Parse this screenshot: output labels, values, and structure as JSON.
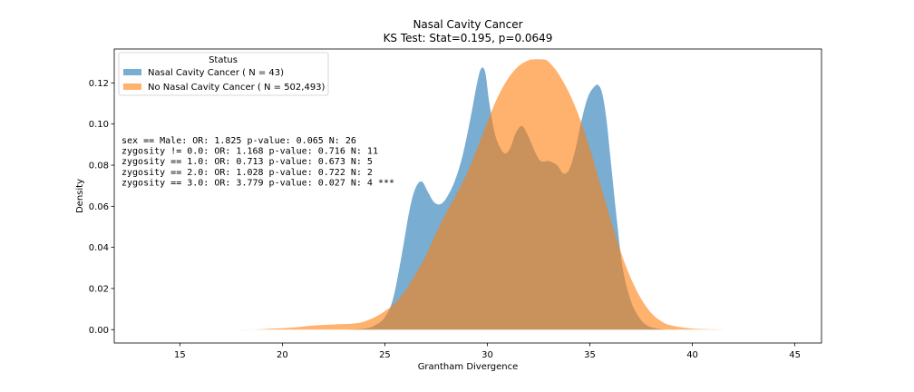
{
  "chart_data": {
    "type": "area",
    "title": "Nasal Cavity Cancer",
    "subtitle": "KS Test: Stat=0.195, p=0.0649",
    "xlabel": "Grantham Divergence",
    "ylabel": "Density",
    "xlim": [
      11.8,
      46.3
    ],
    "ylim": [
      -0.0065,
      0.1365
    ],
    "xticks": [
      15,
      20,
      25,
      30,
      35,
      40,
      45
    ],
    "yticks": [
      0.0,
      0.02,
      0.04,
      0.06,
      0.08,
      0.1,
      0.12
    ],
    "ytick_labels": [
      "0.00",
      "0.02",
      "0.04",
      "0.06",
      "0.08",
      "0.10",
      "0.12"
    ],
    "grid": false,
    "legend": {
      "title": "Status",
      "placement": "top-left"
    },
    "series": [
      {
        "name": "Nasal Cavity Cancer ( N = 43)",
        "color": "#1f77b4",
        "x": [
          23.2,
          24.0,
          24.5,
          25.0,
          25.4,
          25.8,
          26.2,
          26.5,
          26.8,
          27.1,
          27.4,
          27.7,
          28.0,
          28.4,
          28.8,
          29.2,
          29.5,
          29.7,
          29.9,
          30.1,
          30.4,
          30.8,
          31.1,
          31.4,
          31.7,
          32.0,
          32.3,
          32.6,
          33.0,
          33.4,
          33.7,
          34.0,
          34.3,
          34.6,
          34.9,
          35.2,
          35.4,
          35.6,
          35.8,
          36.0,
          36.3,
          36.6,
          37.0,
          37.4,
          37.8,
          38.3,
          38.8,
          39.4
        ],
        "y": [
          0.0,
          0.0005,
          0.002,
          0.006,
          0.015,
          0.035,
          0.058,
          0.069,
          0.072,
          0.067,
          0.062,
          0.061,
          0.064,
          0.072,
          0.085,
          0.104,
          0.12,
          0.127,
          0.125,
          0.11,
          0.094,
          0.086,
          0.088,
          0.096,
          0.099,
          0.094,
          0.087,
          0.082,
          0.082,
          0.08,
          0.076,
          0.078,
          0.088,
          0.102,
          0.113,
          0.118,
          0.119,
          0.115,
          0.103,
          0.084,
          0.055,
          0.03,
          0.014,
          0.006,
          0.002,
          0.0005,
          0.0,
          0.0
        ]
      },
      {
        "name": "No Nasal Cavity Cancer ( N = 502,493)",
        "color": "#ff7f0e",
        "x": [
          13.4,
          15.0,
          17.0,
          18.5,
          19.5,
          20.5,
          21.5,
          22.5,
          23.5,
          24.0,
          24.5,
          25.0,
          25.5,
          26.0,
          26.5,
          27.0,
          27.5,
          28.0,
          28.5,
          29.0,
          29.5,
          30.0,
          30.5,
          31.0,
          31.5,
          32.0,
          32.3,
          32.6,
          32.9,
          33.2,
          33.5,
          34.0,
          34.5,
          35.0,
          35.5,
          36.0,
          36.5,
          37.0,
          37.5,
          38.0,
          38.5,
          39.0,
          40.0,
          41.0,
          42.0,
          43.5,
          44.8
        ],
        "y": [
          0.0,
          0.0,
          0.0,
          0.0,
          0.0005,
          0.001,
          0.002,
          0.0025,
          0.003,
          0.004,
          0.006,
          0.009,
          0.013,
          0.019,
          0.027,
          0.036,
          0.047,
          0.057,
          0.066,
          0.076,
          0.088,
          0.101,
          0.113,
          0.122,
          0.128,
          0.131,
          0.1315,
          0.1315,
          0.131,
          0.128,
          0.124,
          0.115,
          0.103,
          0.088,
          0.071,
          0.054,
          0.038,
          0.025,
          0.015,
          0.008,
          0.004,
          0.002,
          0.0005,
          0.0002,
          0.0,
          0.0,
          0.0
        ]
      }
    ],
    "annotations": [
      "sex == Male: OR: 1.825 p-value: 0.065 N: 26",
      "zygosity != 0.0: OR: 1.168 p-value: 0.716 N: 11",
      "zygosity == 1.0: OR: 0.713 p-value: 0.673 N: 5",
      "zygosity == 2.0: OR: 1.028 p-value: 0.722 N: 2",
      "zygosity == 3.0: OR: 3.779 p-value: 0.027 N: 4 ***"
    ]
  }
}
